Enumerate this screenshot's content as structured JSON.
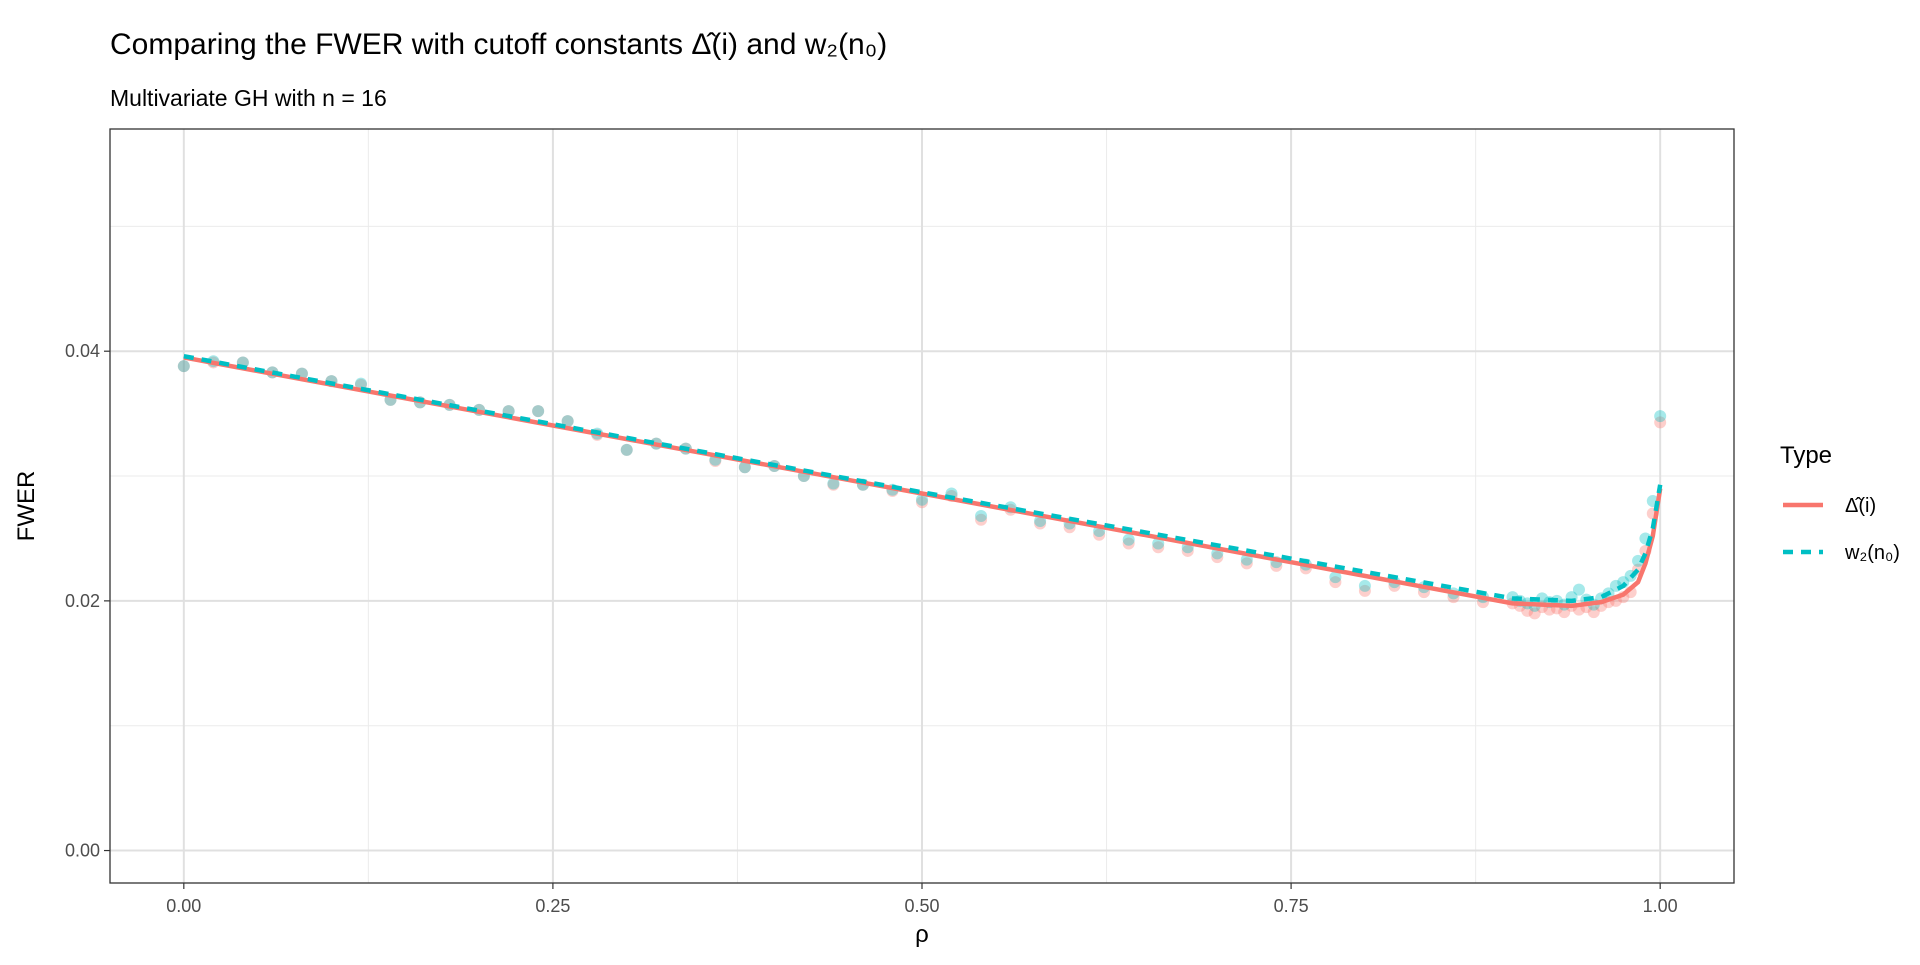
{
  "chart_data": {
    "type": "scatter",
    "title": "Comparing the FWER with cutoff constants Δ̂(i) and w₂(n₀)",
    "subtitle": "Multivariate GH with n = 16",
    "x_label": "ρ",
    "y_label": "FWER",
    "legend_title": "Type",
    "legend_position": "right",
    "grid": true,
    "xlim": [
      -0.05,
      1.05
    ],
    "ylim": [
      -0.0026,
      0.0578
    ],
    "xticks": [
      {
        "value": 0,
        "label": "0.00"
      },
      {
        "value": 0.25,
        "label": "0.25"
      },
      {
        "value": 0.5,
        "label": "0.50"
      },
      {
        "value": 0.75,
        "label": "0.75"
      },
      {
        "value": 1,
        "label": "1.00"
      }
    ],
    "yticks": [
      {
        "value": 0,
        "label": "0.00"
      },
      {
        "value": 0.02,
        "label": "0.02"
      },
      {
        "value": 0.04,
        "label": "0.04"
      }
    ],
    "minor_xticks": [
      0.125,
      0.375,
      0.625,
      0.875
    ],
    "minor_yticks": [
      0.01,
      0.03,
      0.05
    ],
    "series": [
      {
        "name": "Δ̂(i)",
        "color": "#F8766D",
        "line_style": "solid",
        "x": [
          0,
          0.02,
          0.04,
          0.06,
          0.08,
          0.1,
          0.12,
          0.14,
          0.16,
          0.18,
          0.2,
          0.22,
          0.24,
          0.26,
          0.28,
          0.3,
          0.32,
          0.34,
          0.36,
          0.38,
          0.4,
          0.42,
          0.44,
          0.46,
          0.48,
          0.5,
          0.52,
          0.54,
          0.56,
          0.58,
          0.6,
          0.62,
          0.64,
          0.66,
          0.68,
          0.7,
          0.72,
          0.74,
          0.76,
          0.78,
          0.8,
          0.82,
          0.84,
          0.86,
          0.88,
          0.9,
          0.905,
          0.91,
          0.915,
          0.92,
          0.925,
          0.93,
          0.935,
          0.94,
          0.945,
          0.95,
          0.955,
          0.96,
          0.965,
          0.97,
          0.975,
          0.98,
          0.985,
          0.99,
          0.995,
          1
        ],
        "values": [
          0.0388,
          0.0391,
          0.0391,
          0.0383,
          0.0382,
          0.0376,
          0.0373,
          0.0361,
          0.0359,
          0.0357,
          0.0353,
          0.0352,
          0.0352,
          0.0344,
          0.0333,
          0.0321,
          0.0326,
          0.0322,
          0.0312,
          0.0307,
          0.0308,
          0.03,
          0.0293,
          0.0293,
          0.0288,
          0.0279,
          0.0284,
          0.0265,
          0.0273,
          0.0262,
          0.0259,
          0.0253,
          0.0246,
          0.0243,
          0.024,
          0.0235,
          0.023,
          0.0228,
          0.0226,
          0.0215,
          0.0208,
          0.0212,
          0.0207,
          0.0203,
          0.0199,
          0.0198,
          0.0196,
          0.0192,
          0.019,
          0.0195,
          0.0193,
          0.0194,
          0.0191,
          0.0196,
          0.0193,
          0.0195,
          0.0191,
          0.0196,
          0.0199,
          0.02,
          0.0203,
          0.0207,
          0.0225,
          0.024,
          0.027,
          0.0343
        ],
        "fit": {
          "x": [
            0,
            0.5,
            0.9,
            0.94,
            0.96,
            0.975,
            0.985,
            0.99,
            0.995,
            1
          ],
          "values": [
            0.0395,
            0.0286,
            0.0198,
            0.0196,
            0.0199,
            0.0205,
            0.0215,
            0.023,
            0.0252,
            0.029
          ]
        }
      },
      {
        "name": "w₂(n₀)",
        "color": "#00BFC4",
        "line_style": "dashed",
        "x": [
          0,
          0.02,
          0.04,
          0.06,
          0.08,
          0.1,
          0.12,
          0.14,
          0.16,
          0.18,
          0.2,
          0.22,
          0.24,
          0.26,
          0.28,
          0.3,
          0.32,
          0.34,
          0.36,
          0.38,
          0.4,
          0.42,
          0.44,
          0.46,
          0.48,
          0.5,
          0.52,
          0.54,
          0.56,
          0.58,
          0.6,
          0.62,
          0.64,
          0.66,
          0.68,
          0.7,
          0.72,
          0.74,
          0.76,
          0.78,
          0.8,
          0.82,
          0.84,
          0.86,
          0.88,
          0.9,
          0.905,
          0.91,
          0.915,
          0.92,
          0.925,
          0.93,
          0.935,
          0.94,
          0.945,
          0.95,
          0.955,
          0.96,
          0.965,
          0.97,
          0.975,
          0.98,
          0.985,
          0.99,
          0.995,
          1
        ],
        "values": [
          0.0388,
          0.0392,
          0.0391,
          0.0383,
          0.0382,
          0.0376,
          0.0374,
          0.0361,
          0.0359,
          0.0357,
          0.0353,
          0.0352,
          0.0352,
          0.0344,
          0.0334,
          0.0321,
          0.0326,
          0.0322,
          0.0313,
          0.0307,
          0.0308,
          0.03,
          0.0294,
          0.0293,
          0.0289,
          0.0281,
          0.0286,
          0.0268,
          0.0275,
          0.0264,
          0.0262,
          0.0256,
          0.0249,
          0.0246,
          0.0243,
          0.0238,
          0.0233,
          0.0231,
          0.0229,
          0.0219,
          0.0212,
          0.0215,
          0.0211,
          0.0206,
          0.0203,
          0.0203,
          0.02,
          0.0198,
          0.0196,
          0.0202,
          0.0199,
          0.02,
          0.0197,
          0.0203,
          0.0209,
          0.0201,
          0.0197,
          0.0202,
          0.0206,
          0.0212,
          0.0215,
          0.022,
          0.0232,
          0.025,
          0.028,
          0.0348
        ],
        "fit": {
          "x": [
            0,
            0.5,
            0.9,
            0.94,
            0.96,
            0.975,
            0.985,
            0.99,
            0.995,
            1
          ],
          "values": [
            0.0396,
            0.0287,
            0.0202,
            0.02,
            0.0203,
            0.0212,
            0.0225,
            0.0238,
            0.0258,
            0.0293
          ]
        }
      }
    ]
  }
}
